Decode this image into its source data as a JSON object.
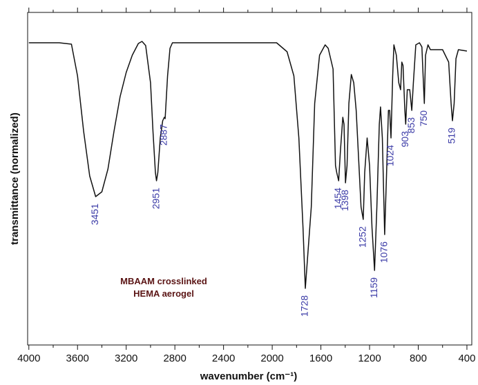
{
  "chart_data": {
    "type": "line",
    "xlabel": "wavenumber (cm⁻¹)",
    "ylabel": "transmittance (normalized)",
    "text_box": [
      "MBAAM crosslinked",
      "HEMA aerogel"
    ],
    "xlim": [
      4010,
      360
    ],
    "ylim": [
      0,
      482
    ],
    "xticks": [
      4000,
      3600,
      3200,
      2800,
      2400,
      2000,
      1600,
      1200,
      800,
      400
    ],
    "xticks_minor": [
      3800,
      3400,
      3000,
      2600,
      2200,
      1800,
      1400,
      1000,
      600
    ],
    "x": [
      4000,
      3750,
      3650,
      3600,
      3550,
      3500,
      3451,
      3400,
      3350,
      3300,
      3250,
      3200,
      3150,
      3100,
      3070,
      3040,
      3000,
      2980,
      2960,
      2951,
      2940,
      2920,
      2900,
      2887,
      2880,
      2860,
      2840,
      2820,
      2400,
      1964,
      1878,
      1822,
      1781,
      1747,
      1728,
      1679,
      1651,
      1611,
      1565,
      1540,
      1500,
      1480,
      1470,
      1454,
      1440,
      1420,
      1410,
      1398,
      1385,
      1370,
      1350,
      1330,
      1310,
      1290,
      1270,
      1252,
      1240,
      1220,
      1200,
      1180,
      1159,
      1140,
      1120,
      1110,
      1095,
      1076,
      1060,
      1045,
      1035,
      1024,
      1010,
      1000,
      980,
      960,
      945,
      935,
      925,
      910,
      903,
      890,
      870,
      853,
      840,
      820,
      790,
      770,
      760,
      750,
      740,
      720,
      700,
      600,
      550,
      530,
      519,
      505,
      490,
      470,
      400
    ],
    "series": [
      {
        "color": "#111111",
        "values": [
          438,
          438,
          436,
          390,
          310,
          245,
          215,
          222,
          255,
          310,
          360,
          395,
          420,
          437,
          440,
          434,
          380,
          310,
          250,
          238,
          250,
          300,
          325,
          330,
          328,
          390,
          430,
          438,
          438,
          438,
          425,
          390,
          300,
          170,
          82,
          200,
          350,
          420,
          435,
          430,
          400,
          260,
          250,
          238,
          280,
          330,
          320,
          235,
          260,
          350,
          392,
          380,
          340,
          270,
          200,
          182,
          250,
          300,
          260,
          170,
          108,
          200,
          320,
          345,
          300,
          160,
          250,
          340,
          340,
          300,
          390,
          435,
          420,
          380,
          370,
          410,
          405,
          340,
          320,
          370,
          370,
          340,
          380,
          435,
          438,
          432,
          390,
          350,
          420,
          435,
          428,
          428,
          410,
          350,
          325,
          350,
          415,
          428,
          426
        ]
      }
    ],
    "annotations": [
      {
        "x": 3451,
        "text": "3451"
      },
      {
        "x": 2951,
        "text": "2951"
      },
      {
        "x": 2887,
        "text": "2887"
      },
      {
        "x": 1728,
        "text": "1728"
      },
      {
        "x": 1454,
        "text": "1454"
      },
      {
        "x": 1398,
        "text": "1398"
      },
      {
        "x": 1252,
        "text": "1252"
      },
      {
        "x": 1159,
        "text": "1159"
      },
      {
        "x": 1076,
        "text": "1076"
      },
      {
        "x": 1024,
        "text": "1024"
      },
      {
        "x": 903,
        "text": "903"
      },
      {
        "x": 853,
        "text": "853"
      },
      {
        "x": 750,
        "text": "750"
      },
      {
        "x": 519,
        "text": "519"
      }
    ]
  }
}
